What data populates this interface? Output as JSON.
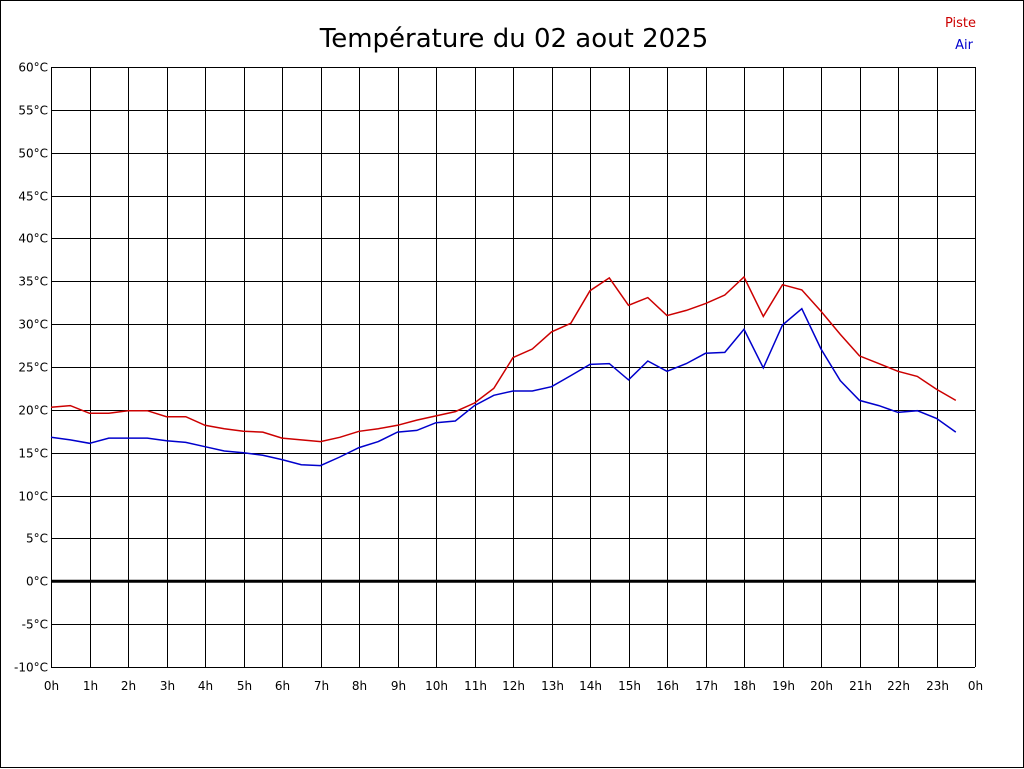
{
  "chart_data": {
    "type": "line",
    "title": "Température du 02 aout 2025",
    "xlabel": "",
    "ylabel": "",
    "x_ticks": [
      "0h",
      "1h",
      "2h",
      "3h",
      "4h",
      "5h",
      "6h",
      "7h",
      "8h",
      "9h",
      "10h",
      "11h",
      "12h",
      "13h",
      "14h",
      "15h",
      "16h",
      "17h",
      "18h",
      "19h",
      "20h",
      "21h",
      "22h",
      "23h",
      "0h"
    ],
    "y_ticks": [
      "60°C",
      "55°C",
      "50°C",
      "45°C",
      "40°C",
      "35°C",
      "30°C",
      "25°C",
      "20°C",
      "15°C",
      "10°C",
      "5°C",
      "0°C",
      "-5°C",
      "-10°C"
    ],
    "xlim": [
      0,
      24
    ],
    "ylim": [
      -10,
      60
    ],
    "grid": true,
    "zero_line": true,
    "legend_position": "top-right",
    "series": [
      {
        "name": "Piste",
        "color": "#cc0000",
        "x": [
          0,
          0.5,
          1,
          1.5,
          2,
          2.5,
          3,
          3.5,
          4,
          4.5,
          5,
          5.5,
          6,
          6.5,
          7,
          7.5,
          8,
          8.5,
          9,
          9.5,
          10,
          10.5,
          11,
          11.5,
          12,
          12.5,
          13,
          13.5,
          14,
          14.5,
          15,
          15.5,
          16,
          16.5,
          17,
          17.5,
          18,
          18.5,
          19,
          19.5,
          20,
          20.5,
          21,
          21.5,
          22,
          22.5,
          23,
          23.5
        ],
        "values": [
          20.3,
          20.5,
          19.6,
          19.6,
          19.9,
          19.9,
          19.2,
          19.2,
          18.2,
          17.8,
          17.5,
          17.4,
          16.7,
          16.5,
          16.3,
          16.8,
          17.5,
          17.8,
          18.2,
          18.8,
          19.3,
          19.8,
          20.8,
          22.5,
          26.1,
          27.1,
          29.1,
          30.1,
          33.9,
          35.4,
          32.2,
          33.1,
          31.0,
          31.6,
          32.4,
          33.4,
          35.5,
          30.9,
          34.6,
          34.0,
          31.5,
          28.8,
          26.3,
          25.4,
          24.5,
          23.9,
          22.4,
          21.1
        ]
      },
      {
        "name": "Air",
        "color": "#0000cc",
        "x": [
          0,
          0.5,
          1,
          1.5,
          2,
          2.5,
          3,
          3.5,
          4,
          4.5,
          5,
          5.5,
          6,
          6.5,
          7,
          7.5,
          8,
          8.5,
          9,
          9.5,
          10,
          10.5,
          11,
          11.5,
          12,
          12.5,
          13,
          13.5,
          14,
          14.5,
          15,
          15.5,
          16,
          16.5,
          17,
          17.5,
          18,
          18.5,
          19,
          19.5,
          20,
          20.5,
          21,
          21.5,
          22,
          22.5,
          23,
          23.5
        ],
        "values": [
          16.8,
          16.5,
          16.1,
          16.7,
          16.7,
          16.7,
          16.4,
          16.2,
          15.7,
          15.2,
          15.0,
          14.7,
          14.2,
          13.6,
          13.5,
          14.5,
          15.6,
          16.3,
          17.4,
          17.6,
          18.5,
          18.7,
          20.5,
          21.7,
          22.2,
          22.2,
          22.7,
          24.0,
          25.3,
          25.4,
          23.5,
          25.7,
          24.5,
          25.4,
          26.6,
          26.7,
          29.4,
          24.9,
          29.9,
          31.8,
          27.1,
          23.4,
          21.1,
          20.5,
          19.7,
          19.9,
          19.0,
          17.4
        ]
      }
    ]
  }
}
